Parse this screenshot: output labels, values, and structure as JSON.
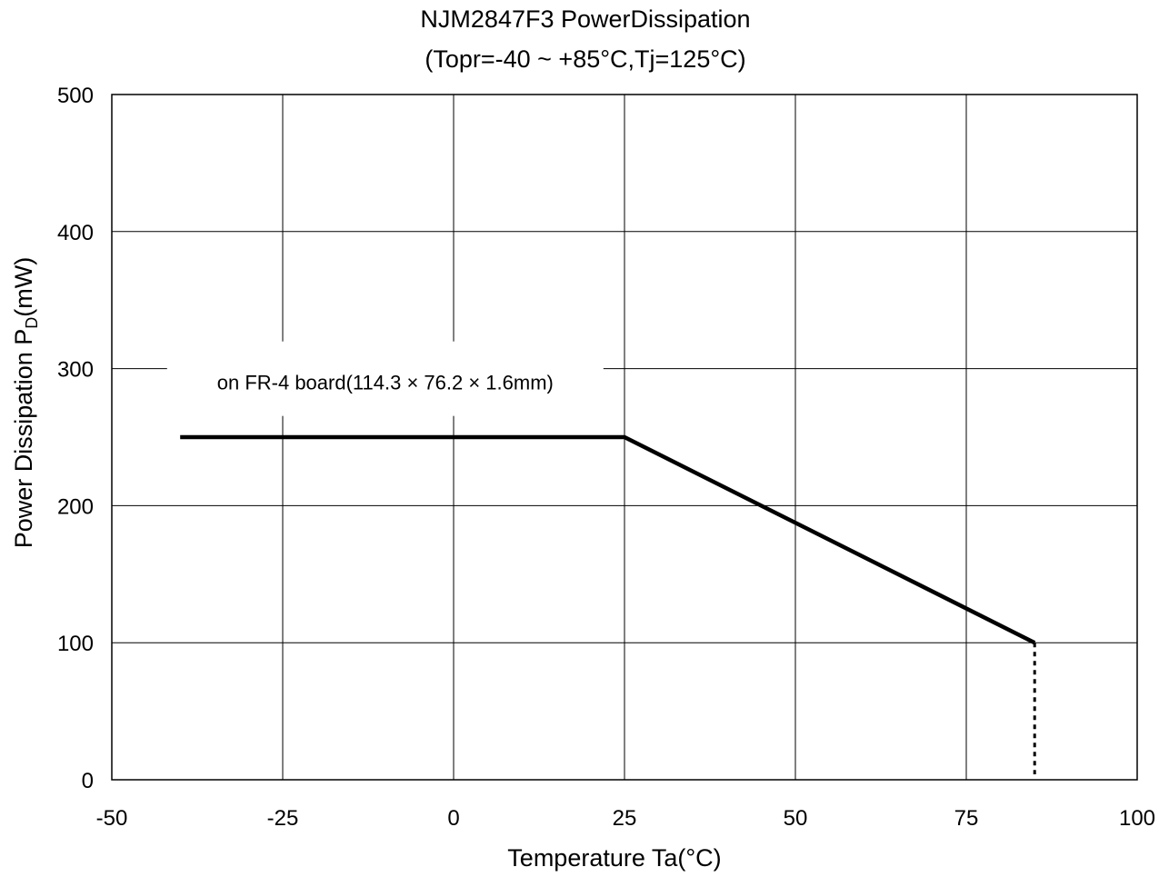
{
  "chart_data": {
    "type": "line",
    "title": "NJM2847F3 PowerDissipation",
    "subtitle": "(Topr=-40 ~ +85°C,Tj=125°C)",
    "xlabel": "Temperature Ta(°C)",
    "ylabel_main": "Power Dissipation P",
    "ylabel_sub": "D",
    "ylabel_unit": "(mW)",
    "xlim": [
      -50,
      100
    ],
    "ylim": [
      0,
      500
    ],
    "xticks": [
      -50,
      -25,
      0,
      25,
      50,
      75,
      100
    ],
    "yticks": [
      0,
      100,
      200,
      300,
      400,
      500
    ],
    "grid": true,
    "series": [
      {
        "x": [
          -40,
          25,
          85
        ],
        "y": [
          250,
          250,
          100
        ],
        "color": "#000000",
        "style": "solid"
      }
    ],
    "drop_line": {
      "x": 85,
      "y_from": 100,
      "y_to": 0,
      "style": "dotted"
    },
    "annotation": {
      "text": "on FR-4 board(114.3 × 76.2 × 1.6mm)",
      "x": -10,
      "y": 290
    }
  }
}
